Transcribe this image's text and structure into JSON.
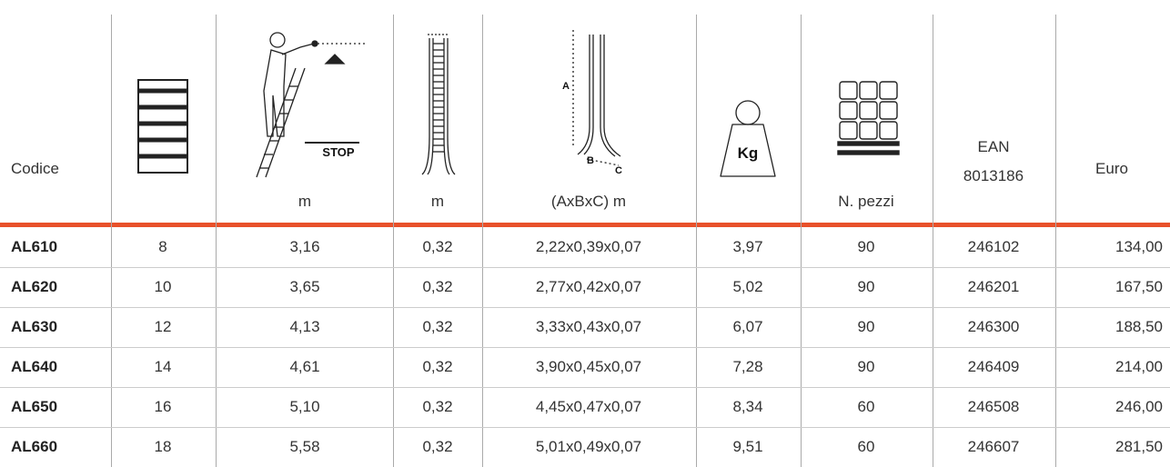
{
  "header": {
    "code": "Codice",
    "height_unit": "m",
    "width_unit": "m",
    "dims_unit": "(AxBxC) m",
    "pallet_unit": "N. pezzi",
    "ean": [
      "EAN",
      "8013186"
    ],
    "price": "Euro"
  },
  "icons": {
    "stop": "STOP",
    "dim_a": "A",
    "dim_b": "B",
    "dim_c": "C",
    "weight": "Kg"
  },
  "rows": [
    [
      "AL610",
      "8",
      "3,16",
      "0,32",
      "2,22x0,39x0,07",
      "3,97",
      "90",
      "246102",
      "134,00"
    ],
    [
      "AL620",
      "10",
      "3,65",
      "0,32",
      "2,77x0,42x0,07",
      "5,02",
      "90",
      "246201",
      "167,50"
    ],
    [
      "AL630",
      "12",
      "4,13",
      "0,32",
      "3,33x0,43x0,07",
      "6,07",
      "90",
      "246300",
      "188,50"
    ],
    [
      "AL640",
      "14",
      "4,61",
      "0,32",
      "3,90x0,45x0,07",
      "7,28",
      "90",
      "246409",
      "214,00"
    ],
    [
      "AL650",
      "16",
      "5,10",
      "0,32",
      "4,45x0,47x0,07",
      "8,34",
      "60",
      "246508",
      "246,00"
    ],
    [
      "AL660",
      "18",
      "5,58",
      "0,32",
      "5,01x0,49x0,07",
      "9,51",
      "60",
      "246607",
      "281,50"
    ]
  ]
}
